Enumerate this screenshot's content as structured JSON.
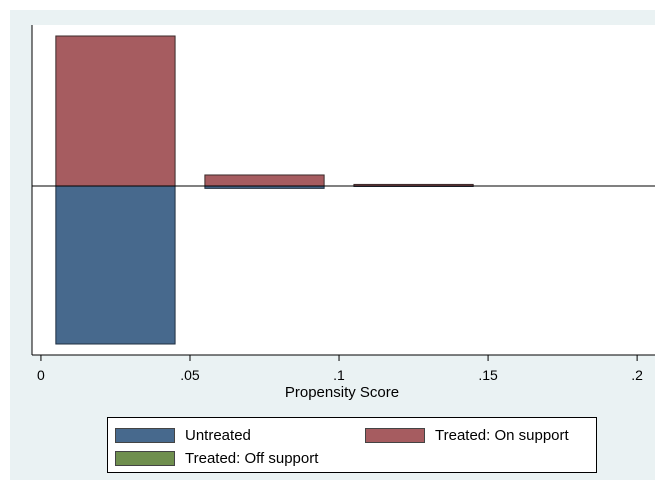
{
  "chart_data": {
    "type": "bar",
    "xlabel": "Propensity Score",
    "ylabel": "",
    "xlim": [
      -0.003,
      0.206
    ],
    "x_ticks": [
      {
        "value": 0,
        "label": "0"
      },
      {
        "value": 0.05,
        "label": ".05"
      },
      {
        "value": 0.1,
        "label": ".1"
      },
      {
        "value": 0.15,
        "label": ".15"
      },
      {
        "value": 0.2,
        "label": ".2"
      }
    ],
    "grid": false,
    "legend_position": "bottom",
    "layout_note": "mirrored histogram: treated bars above zero line, untreated below",
    "bins": [
      {
        "x0": 0.005,
        "x1": 0.045,
        "treated_on_support": 0.953,
        "untreated": 1.0
      },
      {
        "x0": 0.055,
        "x1": 0.095,
        "treated_on_support": 0.07,
        "untreated": 0.015
      },
      {
        "x0": 0.105,
        "x1": 0.145,
        "treated_on_support": 0.01,
        "untreated": 0.003
      }
    ],
    "series": [
      {
        "name": "Untreated",
        "color": "#47698d",
        "direction": "down"
      },
      {
        "name": "Treated: On support",
        "color": "#a65c60",
        "direction": "up"
      },
      {
        "name": "Treated: Off support",
        "color": "#6f8f4e",
        "direction": "up"
      }
    ]
  },
  "legend": {
    "items": [
      "Untreated",
      "Treated: On support",
      "Treated: Off support"
    ]
  },
  "colors": {
    "untreated": "#47698d",
    "treated_on": "#a65c60",
    "treated_off": "#6f8f4e",
    "background": "#eaf2f3",
    "plot_bg": "#ffffff"
  }
}
